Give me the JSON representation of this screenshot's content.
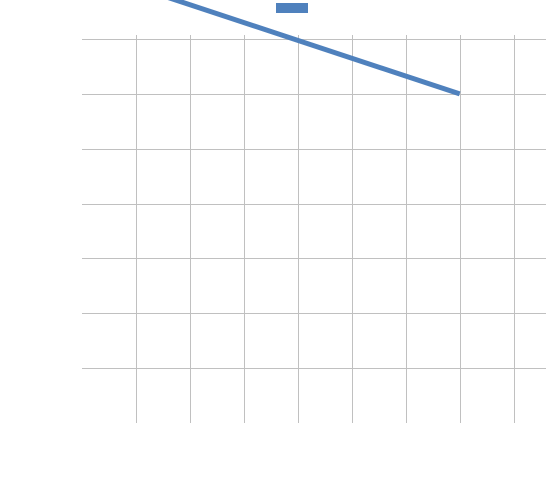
{
  "chart_data": {
    "type": "line",
    "x": [
      1,
      7
    ],
    "series": [
      {
        "values": [
          49.5,
          30
        ],
        "color": "#4f81bd"
      }
    ],
    "xlim": [
      0,
      8.6
    ],
    "ylim": [
      -30,
      40
    ],
    "x_grid_step": 1,
    "y_grid_step": 10,
    "grid": true,
    "legend": "top-center",
    "tick_labels_visible": false,
    "title": "",
    "xlabel": "",
    "ylabel": ""
  }
}
